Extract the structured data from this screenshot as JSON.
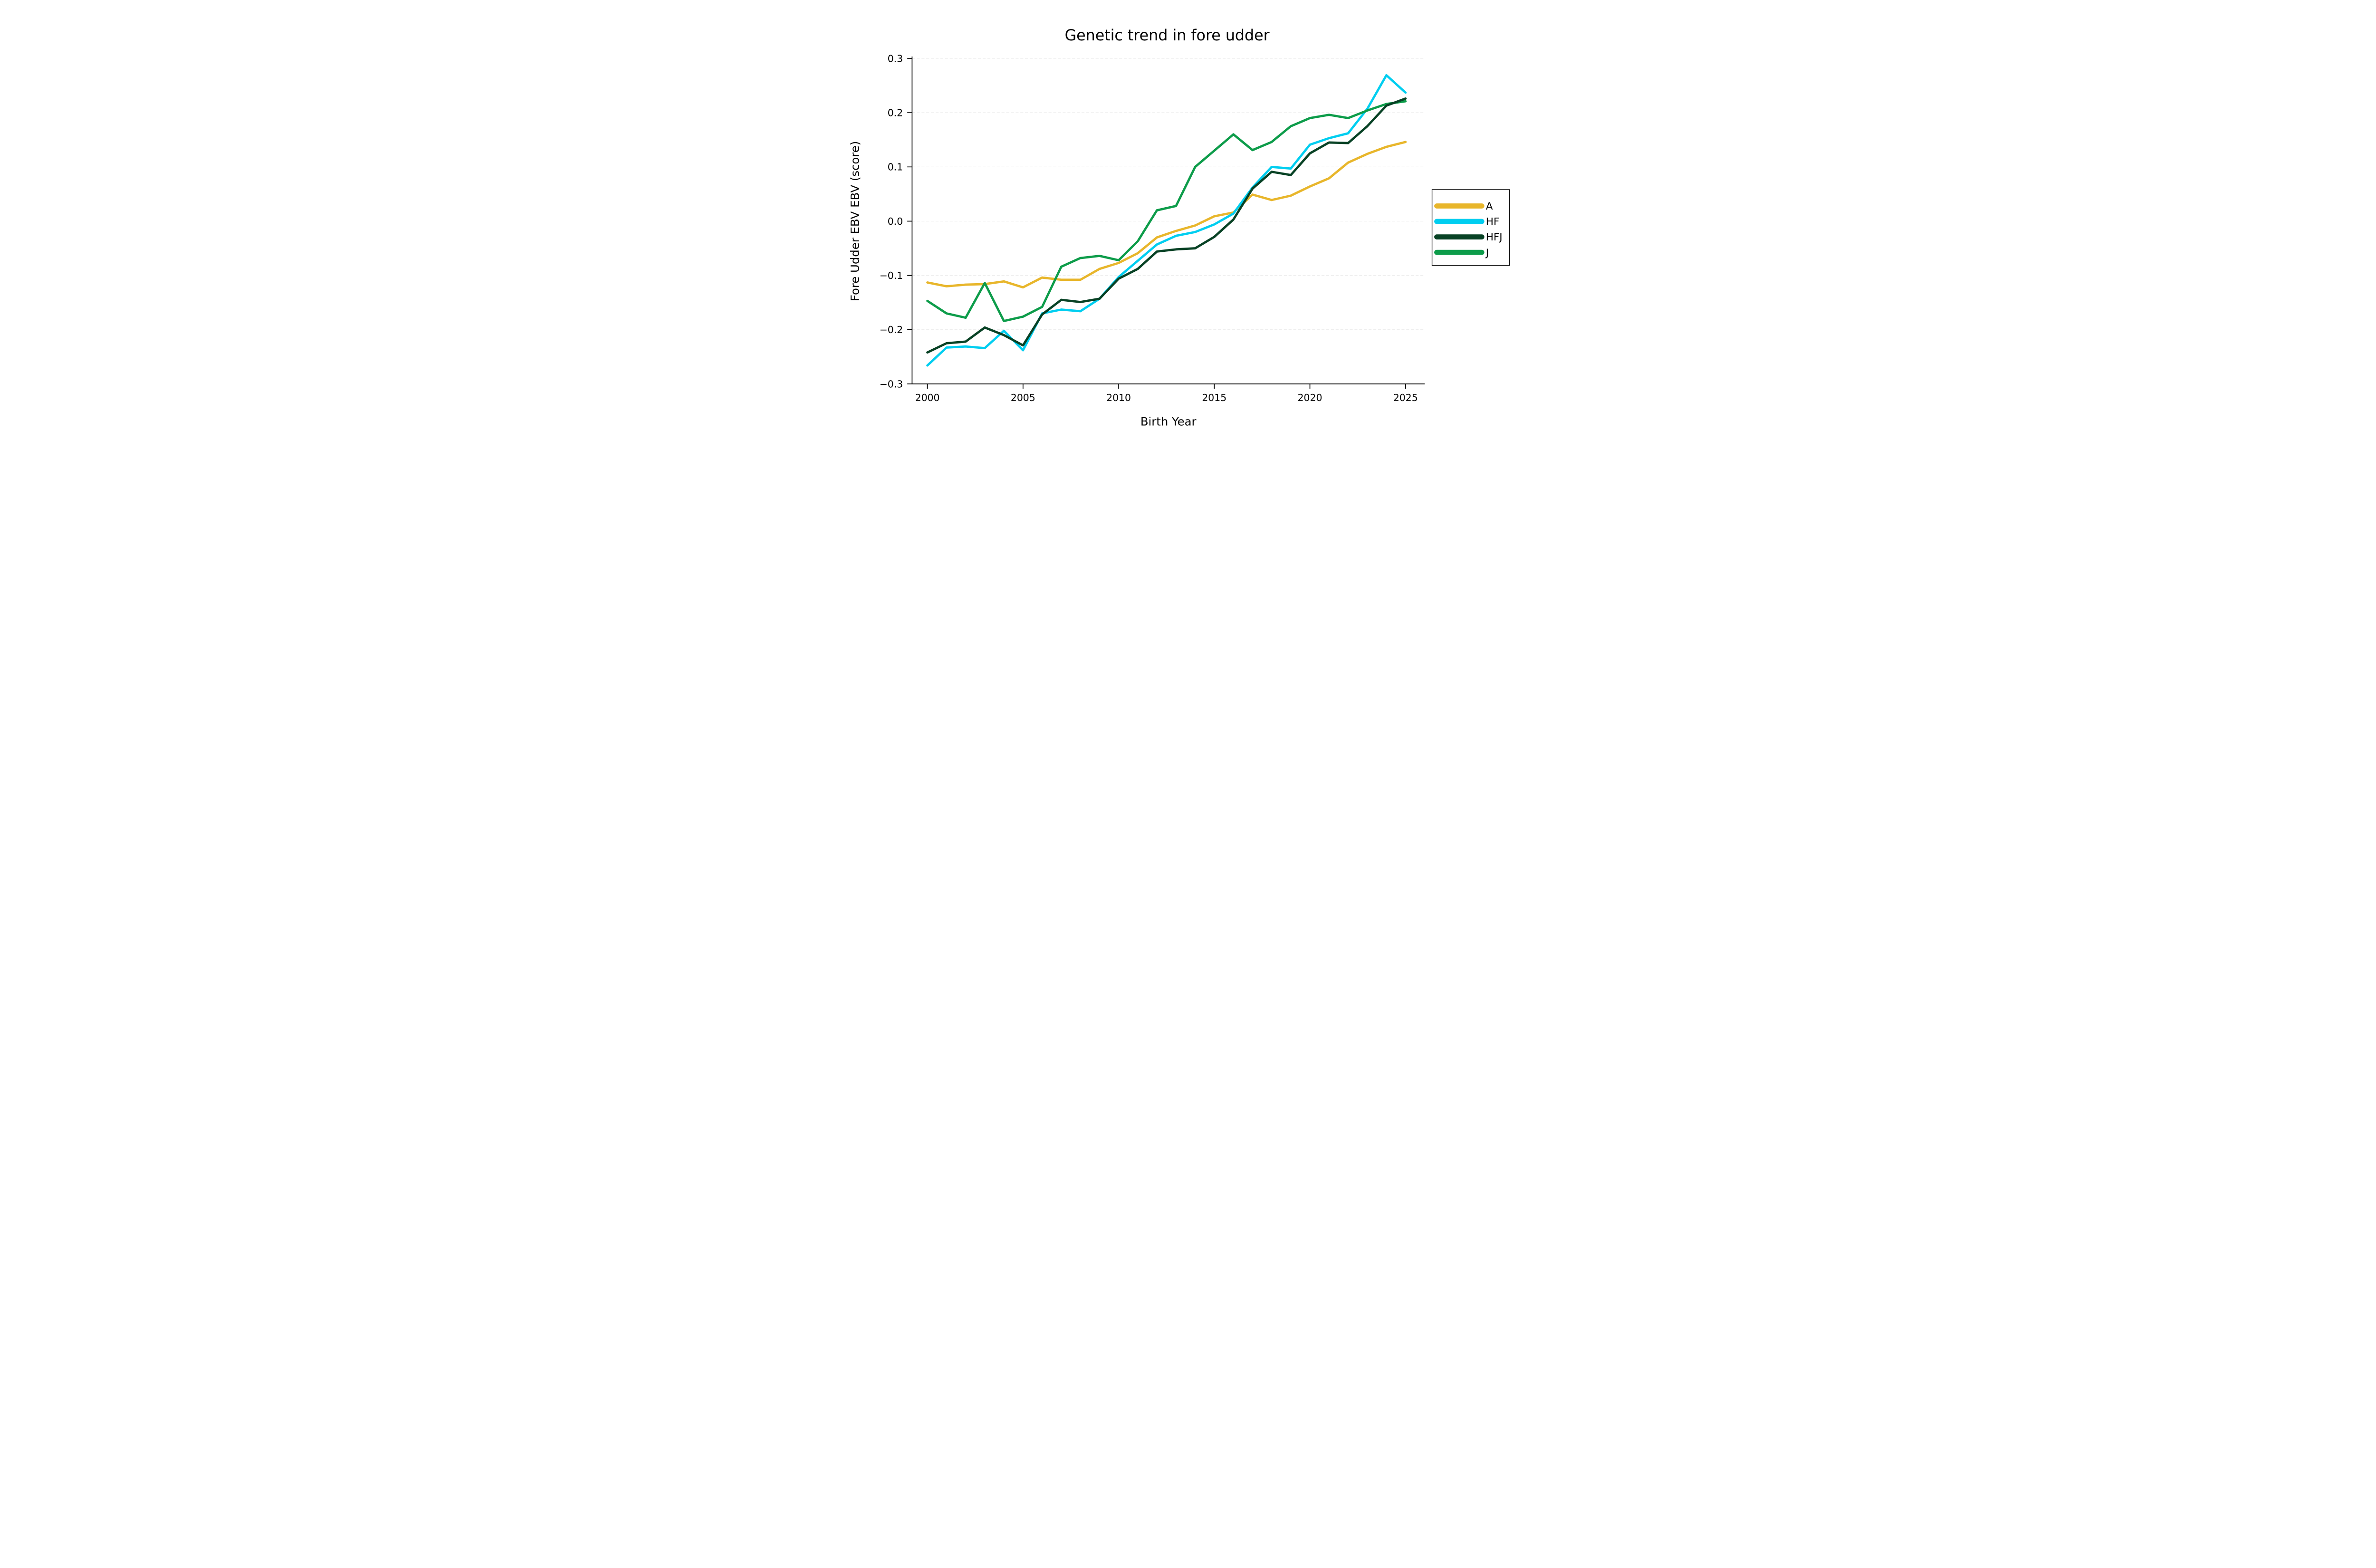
{
  "page": {
    "background": "#ffffff"
  },
  "chart_data": {
    "type": "line",
    "title": "Genetic trend in fore udder",
    "xlabel": "Birth Year",
    "ylabel": "Fore Udder EBV EBV (score)",
    "x": [
      2000,
      2001,
      2002,
      2003,
      2004,
      2005,
      2006,
      2007,
      2008,
      2009,
      2010,
      2011,
      2012,
      2013,
      2014,
      2015,
      2016,
      2017,
      2018,
      2019,
      2020,
      2021,
      2022,
      2023,
      2024,
      2025
    ],
    "series": [
      {
        "name": "A",
        "color": "#E8B62B",
        "values": [
          -0.113,
          -0.12,
          -0.117,
          -0.116,
          -0.111,
          -0.122,
          -0.104,
          -0.108,
          -0.108,
          -0.088,
          -0.077,
          -0.059,
          -0.03,
          -0.018,
          -0.008,
          0.009,
          0.016,
          0.049,
          0.039,
          0.047,
          0.064,
          0.079,
          0.108,
          0.124,
          0.137,
          0.146
        ]
      },
      {
        "name": "HF",
        "color": "#00CEF0",
        "values": [
          -0.266,
          -0.233,
          -0.231,
          -0.234,
          -0.202,
          -0.238,
          -0.17,
          -0.163,
          -0.166,
          -0.143,
          -0.103,
          -0.073,
          -0.043,
          -0.027,
          -0.02,
          -0.006,
          0.014,
          0.062,
          0.1,
          0.097,
          0.141,
          0.153,
          0.162,
          0.207,
          0.269,
          0.237
        ]
      },
      {
        "name": "HFJ",
        "color": "#084225",
        "values": [
          -0.242,
          -0.225,
          -0.222,
          -0.196,
          -0.21,
          -0.229,
          -0.172,
          -0.145,
          -0.149,
          -0.143,
          -0.106,
          -0.088,
          -0.056,
          -0.052,
          -0.05,
          -0.029,
          0.003,
          0.06,
          0.091,
          0.085,
          0.125,
          0.145,
          0.144,
          0.175,
          0.213,
          0.226
        ]
      },
      {
        "name": "J",
        "color": "#0D9C4A",
        "values": [
          -0.147,
          -0.17,
          -0.178,
          -0.114,
          -0.184,
          -0.176,
          -0.158,
          -0.084,
          -0.068,
          -0.064,
          -0.072,
          -0.037,
          0.02,
          0.028,
          0.1,
          0.13,
          0.16,
          0.131,
          0.146,
          0.175,
          0.19,
          0.196,
          0.19,
          0.204,
          0.216,
          0.221
        ]
      }
    ],
    "xticks": [
      2000,
      2005,
      2010,
      2015,
      2020,
      2025
    ],
    "yticks": [
      0.3,
      0.2,
      0.1,
      0.0,
      -0.1,
      -0.2,
      -0.3
    ],
    "ytick_labels": [
      "0.3",
      "0.2",
      "0.1",
      "0.0",
      "−0.1",
      "−0.2",
      "−0.3"
    ],
    "xlim": [
      1999.2,
      2026.0
    ],
    "ylim": [
      -0.3,
      0.3
    ],
    "grid": {
      "horizontal": true,
      "style": "dashed",
      "color": "#e9e9e9"
    },
    "axis_color": "#000000",
    "text_color": "#000000",
    "legend": {
      "position": "outside-right",
      "entries": [
        "A",
        "HF",
        "HFJ",
        "J"
      ],
      "border_color": "#000000",
      "background": "#ffffff"
    }
  }
}
